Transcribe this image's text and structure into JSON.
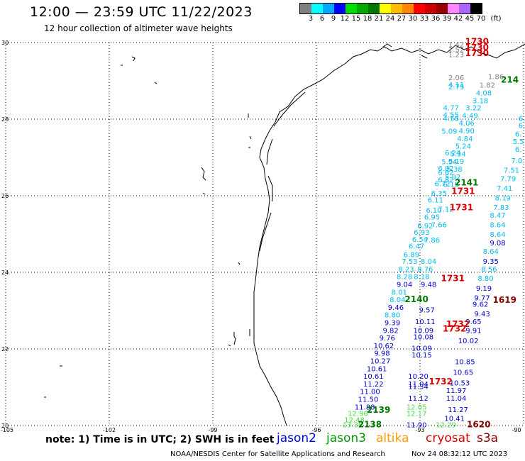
{
  "header": {
    "title": "12:00 — 23:59 UTC 11/22/2023",
    "subtitle": "12 hour collection of altimeter wave heights"
  },
  "colorbar": {
    "unit": "(ft)",
    "ticks": [
      "3",
      "6",
      "9",
      "12",
      "15",
      "18",
      "21",
      "24",
      "27",
      "30",
      "33",
      "36",
      "39",
      "42",
      "45",
      "70"
    ],
    "colors": [
      "#808080",
      "#00ffff",
      "#00aaff",
      "#0000ff",
      "#00dd00",
      "#00aa00",
      "#007700",
      "#ffff00",
      "#ffbb00",
      "#ff8800",
      "#ff0000",
      "#cc0000",
      "#990000",
      "#ff88ff",
      "#aa66ff",
      "#000000"
    ]
  },
  "axes": {
    "lat_labels": [
      "30",
      "28",
      "26",
      "24",
      "22",
      "20"
    ],
    "lon_labels": [
      "-105",
      "-102",
      "-99",
      "-96",
      "-93",
      "-90"
    ]
  },
  "points": {
    "grey": [
      {
        "t": "1.42",
        "lat": 29.88,
        "lon": -91.95
      },
      {
        "t": "1.52",
        "lat": 29.75,
        "lon": -91.95
      },
      {
        "t": "1.23",
        "lat": 29.62,
        "lon": -91.95
      },
      {
        "t": "2.06",
        "lat": 29.02,
        "lon": -91.95
      },
      {
        "t": "1.82",
        "lat": 28.82,
        "lon": -91.05
      },
      {
        "t": "1.86",
        "lat": 29.05,
        "lon": -90.8
      }
    ],
    "cyan_left": [
      {
        "t": "4.11",
        "lat": 28.83,
        "lon": -91.95
      },
      {
        "t": "2.79",
        "lat": 28.78,
        "lon": -91.95
      },
      {
        "t": "4.77",
        "lat": 28.23,
        "lon": -92.1
      },
      {
        "t": "4.55",
        "lat": 28.05,
        "lon": -92.1
      },
      {
        "t": "4.58",
        "lat": 27.95,
        "lon": -92.1
      },
      {
        "t": "5.09",
        "lat": 27.62,
        "lon": -92.15
      },
      {
        "t": "6.24",
        "lat": 27.06,
        "lon": -92.05
      },
      {
        "t": "5.94",
        "lat": 26.82,
        "lon": -92.15
      },
      {
        "t": "6.82",
        "lat": 26.65,
        "lon": -92.25
      },
      {
        "t": "6.62",
        "lat": 26.55,
        "lon": -92.25
      },
      {
        "t": "6.82",
        "lat": 26.35,
        "lon": -92.25
      },
      {
        "t": "6.72",
        "lat": 26.25,
        "lon": -92.35
      },
      {
        "t": "6.35",
        "lat": 26.0,
        "lon": -92.45
      },
      {
        "t": "6.11",
        "lat": 25.82,
        "lon": -92.55
      },
      {
        "t": "6.10",
        "lat": 25.56,
        "lon": -92.6
      },
      {
        "t": "6.95",
        "lat": 25.38,
        "lon": -92.65
      },
      {
        "t": "6.92",
        "lat": 25.15,
        "lon": -92.85
      },
      {
        "t": "6.93",
        "lat": 24.98,
        "lon": -92.95
      },
      {
        "t": "6.54",
        "lat": 24.8,
        "lon": -93.0
      },
      {
        "t": "6.47",
        "lat": 24.62,
        "lon": -93.1
      },
      {
        "t": "6.89",
        "lat": 24.4,
        "lon": -93.25
      },
      {
        "t": "7.53",
        "lat": 24.22,
        "lon": -93.3
      },
      {
        "t": "8.23",
        "lat": 24.02,
        "lon": -93.4
      },
      {
        "t": "8.28",
        "lat": 23.82,
        "lon": -93.45
      },
      {
        "t": "8.01",
        "lat": 23.42,
        "lon": -93.6
      },
      {
        "t": "8.04",
        "lat": 23.22,
        "lon": -93.65
      },
      {
        "t": "8.80",
        "lat": 22.82,
        "lon": -93.8
      }
    ],
    "cyan_mid": [
      {
        "t": "4.08",
        "lat": 28.62,
        "lon": -91.15
      },
      {
        "t": "3.18",
        "lat": 28.42,
        "lon": -91.25
      },
      {
        "t": "3.22",
        "lat": 28.23,
        "lon": -91.45
      },
      {
        "t": "4.49",
        "lat": 28.03,
        "lon": -91.55
      },
      {
        "t": "4.06",
        "lat": 27.83,
        "lon": -91.65
      },
      {
        "t": "4.90",
        "lat": 27.63,
        "lon": -91.65
      },
      {
        "t": "4.84",
        "lat": 27.43,
        "lon": -91.7
      },
      {
        "t": "5.24",
        "lat": 27.23,
        "lon": -91.75
      },
      {
        "t": "5.34",
        "lat": 27.03,
        "lon": -91.9
      },
      {
        "t": "5.19",
        "lat": 26.83,
        "lon": -91.95
      },
      {
        "t": "5.38",
        "lat": 26.63,
        "lon": -92.0
      },
      {
        "t": "5.92",
        "lat": 26.43,
        "lon": -92.05
      },
      {
        "t": "6.15",
        "lat": 26.23,
        "lon": -92.1
      },
      {
        "t": "7.12",
        "lat": 25.58,
        "lon": -92.25
      },
      {
        "t": "7.66",
        "lat": 25.18,
        "lon": -92.45
      },
      {
        "t": "7.86",
        "lat": 24.78,
        "lon": -92.65
      },
      {
        "t": "8.04",
        "lat": 24.22,
        "lon": -92.75
      },
      {
        "t": "8.76",
        "lat": 24.02,
        "lon": -92.85
      },
      {
        "t": "8.18",
        "lat": 23.82,
        "lon": -92.95
      }
    ],
    "cyan_right": [
      {
        "t": "6.",
        "lat": 27.95,
        "lon": -90.05
      },
      {
        "t": "6.",
        "lat": 27.77,
        "lon": -90.05
      },
      {
        "t": "6.",
        "lat": 27.55,
        "lon": -90.15
      },
      {
        "t": "5.5",
        "lat": 27.35,
        "lon": -90.15
      },
      {
        "t": "6.",
        "lat": 27.15,
        "lon": -90.15
      },
      {
        "t": "7.0",
        "lat": 26.85,
        "lon": -90.2
      },
      {
        "t": "7.51",
        "lat": 26.6,
        "lon": -90.35
      },
      {
        "t": "7.79",
        "lat": 26.38,
        "lon": -90.45
      },
      {
        "t": "7.41",
        "lat": 26.13,
        "lon": -90.55
      },
      {
        "t": "8.19",
        "lat": 25.88,
        "lon": -90.6
      },
      {
        "t": "7.83",
        "lat": 25.63,
        "lon": -90.65
      },
      {
        "t": "8.47",
        "lat": 25.43,
        "lon": -90.75
      },
      {
        "t": "8.64",
        "lat": 25.18,
        "lon": -90.75
      },
      {
        "t": "8.64",
        "lat": 24.93,
        "lon": -90.75
      },
      {
        "t": "8.64",
        "lat": 24.48,
        "lon": -90.95
      },
      {
        "t": "8.56",
        "lat": 24.02,
        "lon": -91.0
      },
      {
        "t": "8.80",
        "lat": 23.78,
        "lon": -91.1
      }
    ],
    "blue_a": [
      {
        "t": "9.04",
        "lat": 23.62,
        "lon": -93.45
      },
      {
        "t": "9.46",
        "lat": 23.02,
        "lon": -93.7
      },
      {
        "t": "9.39",
        "lat": 22.62,
        "lon": -93.8
      },
      {
        "t": "9.82",
        "lat": 22.42,
        "lon": -93.85
      },
      {
        "t": "9.76",
        "lat": 22.22,
        "lon": -93.95
      },
      {
        "t": "10.62",
        "lat": 22.02,
        "lon": -94.05
      },
      {
        "t": "9.98",
        "lat": 21.82,
        "lon": -94.1
      },
      {
        "t": "10.27",
        "lat": 21.62,
        "lon": -94.15
      },
      {
        "t": "10.61",
        "lat": 21.42,
        "lon": -94.25
      },
      {
        "t": "10.61",
        "lat": 21.22,
        "lon": -94.35
      },
      {
        "t": "11.22",
        "lat": 21.02,
        "lon": -94.35
      },
      {
        "t": "11.00",
        "lat": 20.82,
        "lon": -94.45
      },
      {
        "t": "11.50",
        "lat": 20.62,
        "lon": -94.5
      },
      {
        "t": "11.88",
        "lat": 20.42,
        "lon": -94.6
      }
    ],
    "blue_b": [
      {
        "t": "9.48",
        "lat": 23.62,
        "lon": -92.75
      },
      {
        "t": "9.57",
        "lat": 22.95,
        "lon": -92.8
      },
      {
        "t": "10.11",
        "lat": 22.65,
        "lon": -92.85
      },
      {
        "t": "10.09",
        "lat": 22.42,
        "lon": -92.9
      },
      {
        "t": "10.08",
        "lat": 22.25,
        "lon": -92.9
      },
      {
        "t": "10.09",
        "lat": 21.95,
        "lon": -92.95
      },
      {
        "t": "10.15",
        "lat": 21.78,
        "lon": -92.95
      },
      {
        "t": "10.20",
        "lat": 21.22,
        "lon": -93.05
      },
      {
        "t": "11.04",
        "lat": 21.02,
        "lon": -93.05
      },
      {
        "t": "11.34",
        "lat": 20.95,
        "lon": -93.05
      },
      {
        "t": "11.12",
        "lat": 20.65,
        "lon": -93.05
      },
      {
        "t": "11.90",
        "lat": 19.95,
        "lon": -93.1
      }
    ],
    "blue_c": [
      {
        "t": "9.35",
        "lat": 24.22,
        "lon": -90.95
      },
      {
        "t": "9.08",
        "lat": 24.7,
        "lon": -90.75
      },
      {
        "t": "9.19",
        "lat": 23.52,
        "lon": -91.15
      },
      {
        "t": "9.77",
        "lat": 23.27,
        "lon": -91.2
      },
      {
        "t": "9.62",
        "lat": 23.1,
        "lon": -91.25
      },
      {
        "t": "9.43",
        "lat": 22.85,
        "lon": -91.2
      },
      {
        "t": "9.65",
        "lat": 22.65,
        "lon": -91.45
      },
      {
        "t": "9.91",
        "lat": 22.42,
        "lon": -91.45
      },
      {
        "t": "10.02",
        "lat": 22.15,
        "lon": -91.6
      },
      {
        "t": "10.85",
        "lat": 21.6,
        "lon": -91.7
      },
      {
        "t": "10.65",
        "lat": 21.32,
        "lon": -91.75
      },
      {
        "t": "10.53",
        "lat": 21.05,
        "lon": -91.85
      },
      {
        "t": "11.97",
        "lat": 20.85,
        "lon": -91.95
      },
      {
        "t": "11.04",
        "lat": 20.65,
        "lon": -91.95
      },
      {
        "t": "11.27",
        "lat": 20.35,
        "lon": -91.9
      },
      {
        "t": "10.41",
        "lat": 20.12,
        "lon": -92.0
      }
    ],
    "green_light": [
      {
        "t": "12.96",
        "lat": 20.25,
        "lon": -94.8
      },
      {
        "t": "12.48",
        "lat": 20.08,
        "lon": -94.9
      },
      {
        "t": "13.35",
        "lat": 19.95,
        "lon": -94.95
      },
      {
        "t": "12.05",
        "lat": 20.42,
        "lon": -93.1
      },
      {
        "t": "12.17",
        "lat": 20.25,
        "lon": -93.1
      },
      {
        "t": "12.29",
        "lat": 19.95,
        "lon": -92.25
      }
    ],
    "time_labels": [
      {
        "t": "1730",
        "lat": 29.95,
        "lon": -91.35,
        "c": "#dd0000"
      },
      {
        "t": "1730",
        "lat": 29.8,
        "lon": -91.35,
        "c": "#dd0000"
      },
      {
        "t": "1730",
        "lat": 29.65,
        "lon": -91.35,
        "c": "#dd0000"
      },
      {
        "t": "214",
        "lat": 28.95,
        "lon": -90.4,
        "c": "#007700"
      },
      {
        "t": "2141",
        "lat": 26.27,
        "lon": -91.65,
        "c": "#007700"
      },
      {
        "t": "1731",
        "lat": 26.05,
        "lon": -91.75,
        "c": "#dd0000"
      },
      {
        "t": "1731",
        "lat": 25.62,
        "lon": -91.8,
        "c": "#dd0000"
      },
      {
        "t": "1731",
        "lat": 23.77,
        "lon": -92.05,
        "c": "#dd0000"
      },
      {
        "t": "2140",
        "lat": 23.22,
        "lon": -93.1,
        "c": "#007700"
      },
      {
        "t": "1619",
        "lat": 23.2,
        "lon": -90.55,
        "c": "#880000"
      },
      {
        "t": "1732",
        "lat": 22.57,
        "lon": -91.9,
        "c": "#dd0000"
      },
      {
        "t": "1732",
        "lat": 22.45,
        "lon": -92.0,
        "c": "#dd0000"
      },
      {
        "t": "1732",
        "lat": 21.07,
        "lon": -92.4,
        "c": "#dd0000"
      },
      {
        "t": "2139",
        "lat": 20.33,
        "lon": -94.2,
        "c": "#007700"
      },
      {
        "t": "2138",
        "lat": 19.95,
        "lon": -94.45,
        "c": "#007700"
      },
      {
        "t": "1620",
        "lat": 19.95,
        "lon": -91.3,
        "c": "#880000"
      }
    ]
  },
  "footer": {
    "note": "note:  1) Time is in UTC;  2) SWH is in feet",
    "satellites": [
      {
        "name": "jason2",
        "color": "#0000dd"
      },
      {
        "name": "jason3",
        "color": "#009900"
      },
      {
        "name": "altika",
        "color": "#ff9900"
      },
      {
        "name": "cryosat",
        "color": "#dd0000"
      },
      {
        "name": "s3a",
        "color": "#880000"
      }
    ],
    "credit": "NOAA/NESDIS Center for Satellite Applications and Research",
    "timestamp": "Nov 24 08:32:12 UTC 2023"
  }
}
